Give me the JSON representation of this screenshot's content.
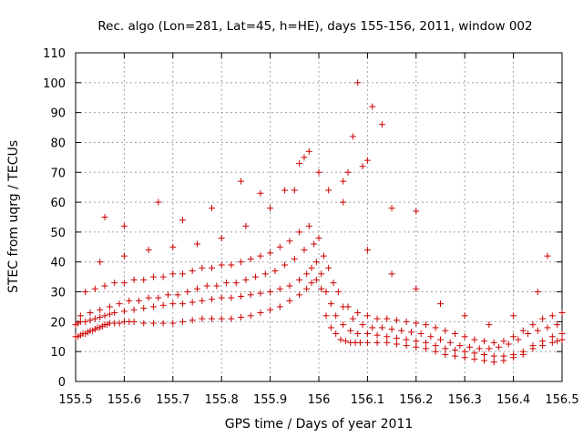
{
  "chart_data": {
    "type": "scatter",
    "title": "Rec. algo (Lon=281, Lat=45, h=HE), days 155-156, 2011, window 002",
    "xlabel": "GPS time / Days of year 2011",
    "ylabel": "STEC from uqrg / TECUs",
    "xlim": [
      155.5,
      156.5
    ],
    "ylim": [
      0,
      110
    ],
    "xticks": [
      "155.5",
      "155.6",
      "155.7",
      "155.8",
      "155.9",
      "156",
      "156.1",
      "156.2",
      "156.3",
      "156.4",
      "156.5"
    ],
    "yticks": [
      "0",
      "10",
      "20",
      "30",
      "40",
      "50",
      "60",
      "70",
      "80",
      "90",
      "100",
      "110"
    ],
    "grid": true,
    "marker": "+",
    "color": "#cc0000",
    "series": [
      {
        "x": [
          155.5,
          155.505,
          155.51,
          155.515,
          155.52,
          155.525,
          155.53,
          155.535,
          155.54,
          155.545,
          155.55,
          155.555,
          155.56,
          155.565,
          155.57,
          155.58,
          155.59,
          155.6,
          155.61,
          155.62,
          155.64,
          155.66,
          155.68,
          155.7,
          155.72,
          155.74,
          155.76,
          155.78,
          155.8,
          155.82,
          155.84,
          155.86,
          155.88,
          155.9,
          155.92,
          155.94,
          155.96,
          155.975,
          155.985,
          155.995,
          156.005,
          156.015,
          156.025,
          156.035,
          156.045,
          156.055,
          156.065,
          156.075,
          156.085,
          156.1,
          156.12,
          156.14,
          156.16,
          156.18,
          156.2,
          156.22,
          156.24,
          156.26,
          156.28,
          156.3,
          156.32,
          156.34,
          156.36,
          156.38,
          156.4,
          156.42,
          156.44,
          156.46,
          156.48,
          156.49,
          156.5
        ],
        "y": [
          15,
          15,
          15.5,
          16,
          16,
          16.5,
          17,
          17,
          17.5,
          18,
          18,
          18.5,
          19,
          19,
          19.5,
          19.5,
          19.5,
          20,
          20,
          20,
          19.5,
          19.5,
          19.5,
          19.5,
          20,
          20.5,
          21,
          21,
          21,
          21,
          21.5,
          22,
          23,
          24,
          25,
          27,
          29,
          31,
          33,
          34,
          31,
          22,
          18,
          16,
          14,
          13.5,
          13,
          13,
          13,
          13,
          13,
          13,
          12.5,
          12,
          11.5,
          11,
          10,
          9,
          8.5,
          8,
          7.5,
          7,
          6.5,
          7,
          8,
          9,
          11,
          12,
          13,
          13.5,
          14
        ]
      },
      {
        "x": [
          155.5,
          155.505,
          155.51,
          155.52,
          155.53,
          155.54,
          155.55,
          155.56,
          155.57,
          155.58,
          155.6,
          155.62,
          155.64,
          155.66,
          155.68,
          155.7,
          155.72,
          155.74,
          155.76,
          155.78,
          155.8,
          155.82,
          155.84,
          155.86,
          155.88,
          155.9,
          155.92,
          155.94,
          155.96,
          155.975,
          155.985,
          155.995,
          156.005,
          156.015,
          156.025,
          156.035,
          156.05,
          156.065,
          156.08,
          156.1,
          156.12,
          156.14,
          156.16,
          156.18,
          156.2,
          156.22,
          156.24,
          156.26,
          156.28,
          156.3,
          156.32,
          156.34,
          156.36,
          156.38,
          156.4,
          156.42,
          156.44,
          156.46,
          156.48,
          156.5
        ],
        "y": [
          19,
          19.5,
          20,
          20,
          20.5,
          21,
          21.5,
          22,
          22.5,
          23,
          23.5,
          24,
          24.5,
          25,
          25.5,
          26,
          26,
          26.5,
          27,
          27.5,
          28,
          28,
          28.5,
          29,
          29.5,
          30,
          31,
          32,
          34,
          36,
          38,
          40,
          36,
          30,
          26,
          22,
          19,
          17,
          16,
          16,
          15.5,
          15,
          14.5,
          14,
          13.5,
          13,
          12,
          11,
          10.5,
          10,
          9.5,
          9,
          8.5,
          8.5,
          9,
          10,
          12,
          13.5,
          15,
          16
        ]
      },
      {
        "x": [
          155.51,
          155.53,
          155.55,
          155.57,
          155.59,
          155.61,
          155.63,
          155.65,
          155.67,
          155.69,
          155.71,
          155.73,
          155.75,
          155.77,
          155.79,
          155.81,
          155.83,
          155.85,
          155.87,
          155.89,
          155.91,
          155.93,
          155.95,
          155.97,
          155.99,
          156.01,
          156.03,
          156.05,
          156.07,
          156.09,
          156.11,
          156.13,
          156.15,
          156.17,
          156.19,
          156.21,
          156.23,
          156.25,
          156.27,
          156.29,
          156.31,
          156.33,
          156.35,
          156.37,
          156.39,
          156.41,
          156.43,
          156.45,
          156.47,
          156.49
        ],
        "y": [
          22,
          23,
          24,
          25,
          26,
          27,
          27,
          28,
          28,
          29,
          29,
          30,
          31,
          32,
          32,
          33,
          33,
          34,
          35,
          36,
          37,
          39,
          41,
          44,
          46,
          42,
          33,
          25,
          21,
          19,
          18,
          18,
          17.5,
          17,
          16.5,
          16,
          15,
          14,
          13,
          12,
          11.5,
          11,
          11,
          11.5,
          12.5,
          14,
          16,
          17,
          18,
          19
        ]
      },
      {
        "x": [
          155.52,
          155.54,
          155.56,
          155.58,
          155.6,
          155.62,
          155.64,
          155.66,
          155.68,
          155.7,
          155.72,
          155.74,
          155.76,
          155.78,
          155.8,
          155.82,
          155.84,
          155.86,
          155.88,
          155.9,
          155.92,
          155.94,
          155.96,
          155.98,
          156.0,
          156.02,
          156.04,
          156.06,
          156.08,
          156.1,
          156.12,
          156.14,
          156.16,
          156.18,
          156.2,
          156.22,
          156.24,
          156.26,
          156.28,
          156.3,
          156.32,
          156.34,
          156.36,
          156.38,
          156.4,
          156.42,
          156.44,
          156.46,
          156.48,
          156.5
        ],
        "y": [
          30,
          31,
          32,
          33,
          33,
          34,
          34,
          35,
          35,
          36,
          36,
          37,
          38,
          38,
          39,
          39,
          40,
          41,
          42,
          43,
          45,
          47,
          50,
          52,
          48,
          38,
          30,
          25,
          23,
          22,
          21,
          21,
          20.5,
          20,
          19.5,
          19,
          18,
          17,
          16,
          15,
          14,
          13.5,
          13,
          13.5,
          15,
          17,
          19,
          21,
          22,
          23
        ]
      },
      {
        "x": [
          155.55,
          155.6,
          155.65,
          155.7,
          155.75,
          155.8,
          155.85,
          155.9,
          155.95,
          156.0,
          156.05,
          156.1,
          156.15,
          156.2,
          156.25,
          156.3,
          156.35,
          156.4,
          156.45,
          156.47
        ],
        "y": [
          40,
          42,
          44,
          45,
          46,
          48,
          52,
          58,
          64,
          70,
          60,
          44,
          36,
          31,
          26,
          22,
          19,
          22,
          30,
          42
        ]
      },
      {
        "x": [
          155.56,
          155.6,
          155.67,
          155.72,
          155.78,
          155.84,
          155.88,
          155.93,
          155.96,
          155.97,
          155.98,
          156.02,
          156.05,
          156.06,
          156.07,
          156.08,
          156.09,
          156.1,
          156.11,
          156.13,
          156.15,
          156.2
        ],
        "y": [
          55,
          52,
          60,
          54,
          58,
          67,
          63,
          64,
          73,
          75,
          77,
          64,
          67,
          70,
          82,
          100,
          72,
          74,
          92,
          86,
          58,
          57
        ]
      }
    ]
  }
}
